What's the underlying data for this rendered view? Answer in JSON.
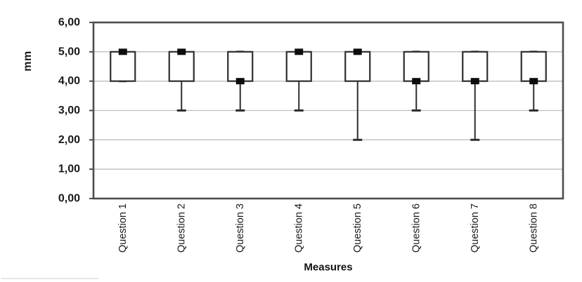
{
  "chart_data": {
    "type": "boxplot",
    "title": "",
    "xlabel": "Measures",
    "ylabel": "mm",
    "ylim": [
      0,
      6
    ],
    "ytick_values": [
      0,
      1,
      2,
      3,
      4,
      5,
      6
    ],
    "ytick_labels": [
      "0,00",
      "1,00",
      "2,00",
      "3,00",
      "4,00",
      "5,00",
      "6,00"
    ],
    "grid": true,
    "legend": "none",
    "categories": [
      "Question 1",
      "Question 2",
      "Question 3",
      "Question 4",
      "Question 5",
      "Question 6",
      "Question 7",
      "Question 8"
    ],
    "series": [
      {
        "label": "Question 1",
        "min": 4,
        "q1": 4,
        "median": 5,
        "q3": 5,
        "max": 5
      },
      {
        "label": "Question 2",
        "min": 3,
        "q1": 4,
        "median": 5,
        "q3": 5,
        "max": 5
      },
      {
        "label": "Question 3",
        "min": 3,
        "q1": 4,
        "median": 4,
        "q3": 5,
        "max": 5
      },
      {
        "label": "Question 4",
        "min": 3,
        "q1": 4,
        "median": 5,
        "q3": 5,
        "max": 5
      },
      {
        "label": "Question 5",
        "min": 2,
        "q1": 4,
        "median": 5,
        "q3": 5,
        "max": 5
      },
      {
        "label": "Question 6",
        "min": 3,
        "q1": 4,
        "median": 4,
        "q3": 5,
        "max": 5
      },
      {
        "label": "Question 7",
        "min": 2,
        "q1": 4,
        "median": 4,
        "q3": 5,
        "max": 5
      },
      {
        "label": "Question 8",
        "min": 3,
        "q1": 4,
        "median": 4,
        "q3": 5,
        "max": 5
      }
    ],
    "colors": {
      "background": "#ffffff",
      "box_fill": "#ffffff",
      "box_stroke": "#2e2e2e",
      "whisker": "#2e2e2e",
      "median_marker": "#0d0d0d",
      "grid": "#bfbfbf",
      "border": "#4d4d4d",
      "text": "#1a1a1a"
    }
  }
}
